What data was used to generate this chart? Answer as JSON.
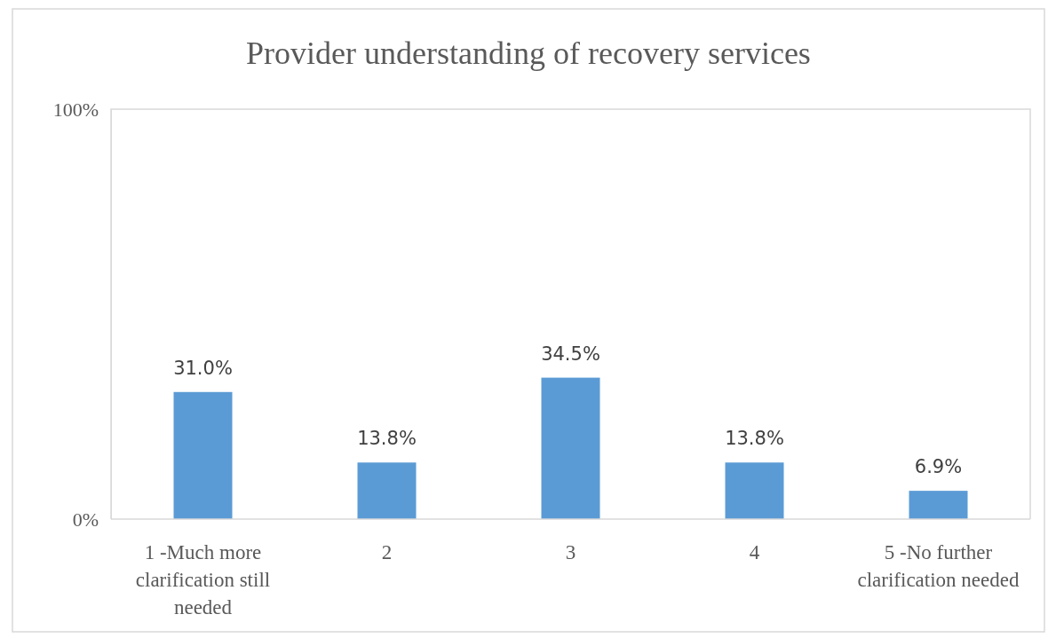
{
  "chart_data": {
    "type": "bar",
    "title": "Provider understanding of recovery services",
    "categories": [
      "1 -Much more clarification still needed",
      "2",
      "3",
      "4",
      "5 -No further clarification needed"
    ],
    "values": [
      31.0,
      13.8,
      34.5,
      13.8,
      6.9
    ],
    "value_labels": [
      "31.0%",
      "13.8%",
      "34.5%",
      "13.8%",
      "6.9%"
    ],
    "color": "#5b9bd5",
    "ylim": [
      0,
      100
    ],
    "yticks": [
      {
        "value": 0,
        "label": "0%"
      },
      {
        "value": 100,
        "label": "100%"
      }
    ]
  }
}
